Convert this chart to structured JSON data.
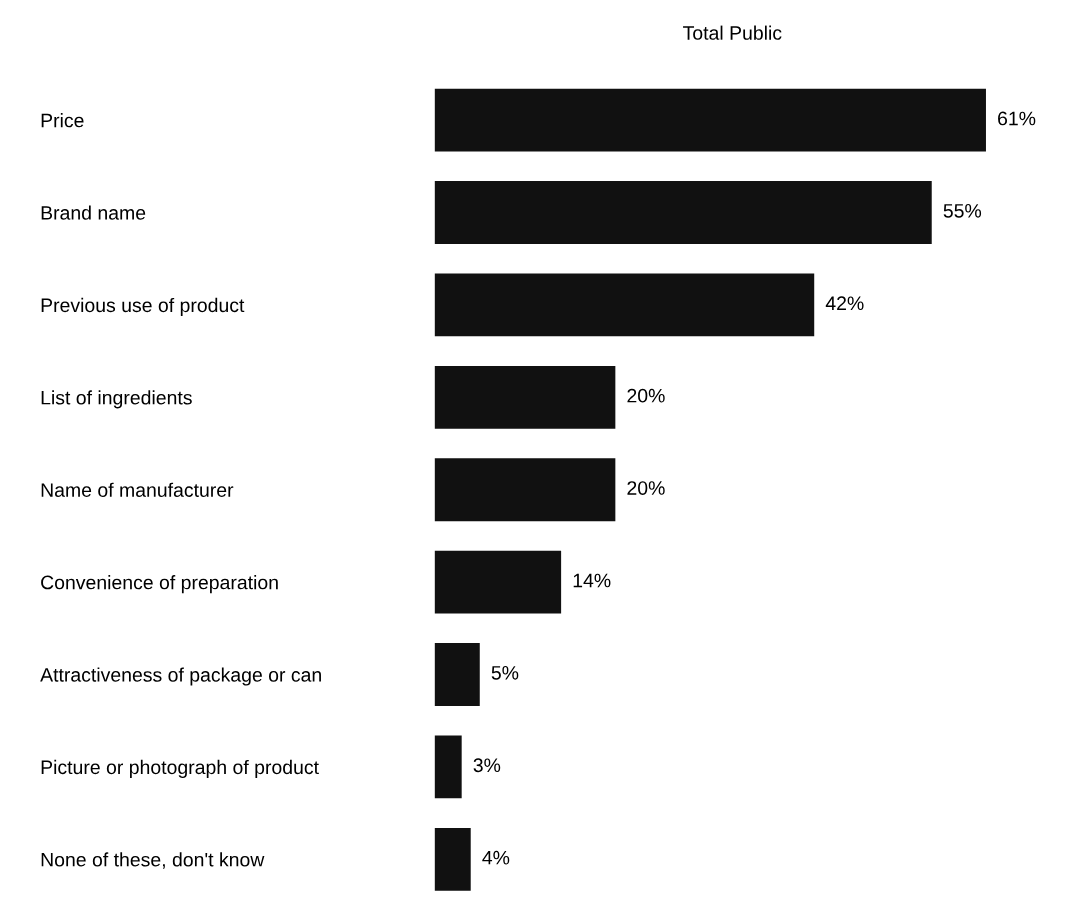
{
  "chart_data": {
    "type": "bar",
    "orientation": "horizontal",
    "title": "Total Public",
    "categories": [
      "Price",
      "Brand name",
      "Previous use of product",
      "List of ingredients",
      "Name of manufacturer",
      "Convenience of preparation",
      "Attractiveness of package or can",
      "Picture or photograph of product",
      "None of these, don't know"
    ],
    "values": [
      61,
      55,
      42,
      20,
      20,
      14,
      5,
      3,
      4
    ],
    "value_labels": [
      "61%",
      "55%",
      "42%",
      "20%",
      "20%",
      "14%",
      "5%",
      "3%",
      "4%"
    ],
    "color": "#111111",
    "grid": false,
    "legend": false
  }
}
